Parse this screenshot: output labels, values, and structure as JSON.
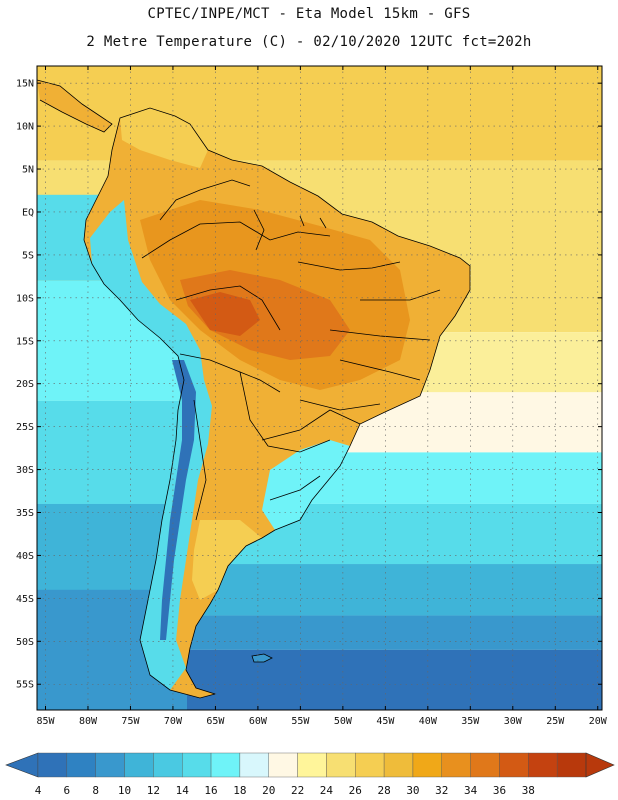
{
  "header": {
    "line1": "CPTEC/INPE/MCT -  Eta Model 15km - GFS",
    "line2": "2 Metre Temperature (C) - 02/10/2020 12UTC fct=202h"
  },
  "map": {
    "lon_range": [
      -86,
      -19.5
    ],
    "lat_range": [
      -58,
      17
    ],
    "lat_ticks": [
      {
        "v": 15,
        "label": "15N"
      },
      {
        "v": 10,
        "label": "10N"
      },
      {
        "v": 5,
        "label": "5N"
      },
      {
        "v": 0,
        "label": "EQ"
      },
      {
        "v": -5,
        "label": "5S"
      },
      {
        "v": -10,
        "label": "10S"
      },
      {
        "v": -15,
        "label": "15S"
      },
      {
        "v": -20,
        "label": "20S"
      },
      {
        "v": -25,
        "label": "25S"
      },
      {
        "v": -30,
        "label": "30S"
      },
      {
        "v": -35,
        "label": "35S"
      },
      {
        "v": -40,
        "label": "40S"
      },
      {
        "v": -45,
        "label": "45S"
      },
      {
        "v": -50,
        "label": "50S"
      },
      {
        "v": -55,
        "label": "55S"
      }
    ],
    "lon_ticks": [
      {
        "v": -85,
        "label": "85W"
      },
      {
        "v": -80,
        "label": "80W"
      },
      {
        "v": -75,
        "label": "75W"
      },
      {
        "v": -70,
        "label": "70W"
      },
      {
        "v": -65,
        "label": "65W"
      },
      {
        "v": -60,
        "label": "60W"
      },
      {
        "v": -55,
        "label": "55W"
      },
      {
        "v": -50,
        "label": "50W"
      },
      {
        "v": -45,
        "label": "45W"
      },
      {
        "v": -40,
        "label": "40W"
      },
      {
        "v": -35,
        "label": "35W"
      },
      {
        "v": -30,
        "label": "30W"
      },
      {
        "v": -25,
        "label": "25W"
      },
      {
        "v": -20,
        "label": "20W"
      }
    ],
    "grid": "dotted",
    "ocean_bands": [
      {
        "lat_top": 17,
        "lat_bottom": 6,
        "temp": "28-30",
        "color": "#f5ce52"
      },
      {
        "lat_top": 6,
        "lat_bottom": -14,
        "temp": "26-28",
        "color": "#f7df72"
      },
      {
        "lat_top": -14,
        "lat_bottom": -21,
        "temp": "24-26",
        "color": "#fbef9a"
      },
      {
        "lat_top": -21,
        "lat_bottom": -28,
        "temp": "20-22",
        "color": "#fff8e4"
      },
      {
        "lat_top": -28,
        "lat_bottom": -34,
        "temp": "16-18",
        "color": "#6ff3f8"
      },
      {
        "lat_top": -34,
        "lat_bottom": -41,
        "temp": "14-16",
        "color": "#57dcea"
      },
      {
        "lat_top": -41,
        "lat_bottom": -47,
        "temp": "10-12",
        "color": "#3fb4d8"
      },
      {
        "lat_top": -47,
        "lat_bottom": -51,
        "temp": "8-10",
        "color": "#3998cd"
      },
      {
        "lat_top": -51,
        "lat_bottom": -58,
        "temp": "6-8",
        "color": "#2f72b8"
      }
    ],
    "pacific_bands": [
      {
        "lat_top": 2,
        "lat_bottom": -8,
        "color": "#57dcea"
      },
      {
        "lat_top": -8,
        "lat_bottom": -22,
        "color": "#6ff3f8"
      },
      {
        "lat_top": -22,
        "lat_bottom": -34,
        "color": "#57dcea"
      },
      {
        "lat_top": -34,
        "lat_bottom": -44,
        "color": "#3fb4d8"
      },
      {
        "lat_top": -44,
        "lat_bottom": -58,
        "color": "#3998cd"
      }
    ],
    "land_colors": {
      "hot": "#e8961e",
      "very_hot": "#e0781a",
      "hottest": "#d35a14",
      "warm": "#f0b035",
      "mild": "#f5ce52",
      "cool": "#6ff3f8",
      "cold": "#3fb4d8",
      "coldest": "#2f72b8"
    }
  },
  "colorbar": {
    "labels": [
      "4",
      "6",
      "8",
      "10",
      "12",
      "14",
      "16",
      "18",
      "20",
      "22",
      "24",
      "26",
      "28",
      "30",
      "32",
      "34",
      "36",
      "38"
    ],
    "colors": [
      "#2f72b8",
      "#2f82c2",
      "#3998cd",
      "#3fb4d8",
      "#4ac9e2",
      "#57dcea",
      "#6ff3f8",
      "#d8f7fc",
      "#fff8e4",
      "#fff59a",
      "#f7df72",
      "#f5ce52",
      "#efbc3a",
      "#f0a818",
      "#e8901e",
      "#e0781a",
      "#d35a14",
      "#c44210",
      "#b8390c"
    ],
    "low_color": "#2f72b8",
    "high_color": "#b8390c"
  }
}
